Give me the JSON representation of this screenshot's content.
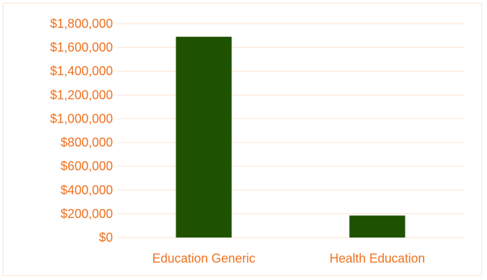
{
  "chart_data": {
    "type": "bar",
    "title": "",
    "xlabel": "",
    "ylabel": "",
    "categories": [
      "Education Generic",
      "Health Education"
    ],
    "values": [
      1690000,
      185000
    ],
    "ylim": [
      0,
      1800000
    ],
    "yticks": [
      0,
      200000,
      400000,
      600000,
      800000,
      1000000,
      1200000,
      1400000,
      1600000,
      1800000
    ],
    "ytick_labels": [
      "$0",
      "$200,000",
      "$400,000",
      "$600,000",
      "$800,000",
      "$1,000,000",
      "$1,200,000",
      "$1,400,000",
      "$1,600,000",
      "$1,800,000"
    ],
    "grid": true,
    "legend": "none",
    "colors": {
      "bar": "#1e5200",
      "text": "#f0701e",
      "grid": "#fde6d4",
      "frame": "#fbe3cf"
    }
  }
}
